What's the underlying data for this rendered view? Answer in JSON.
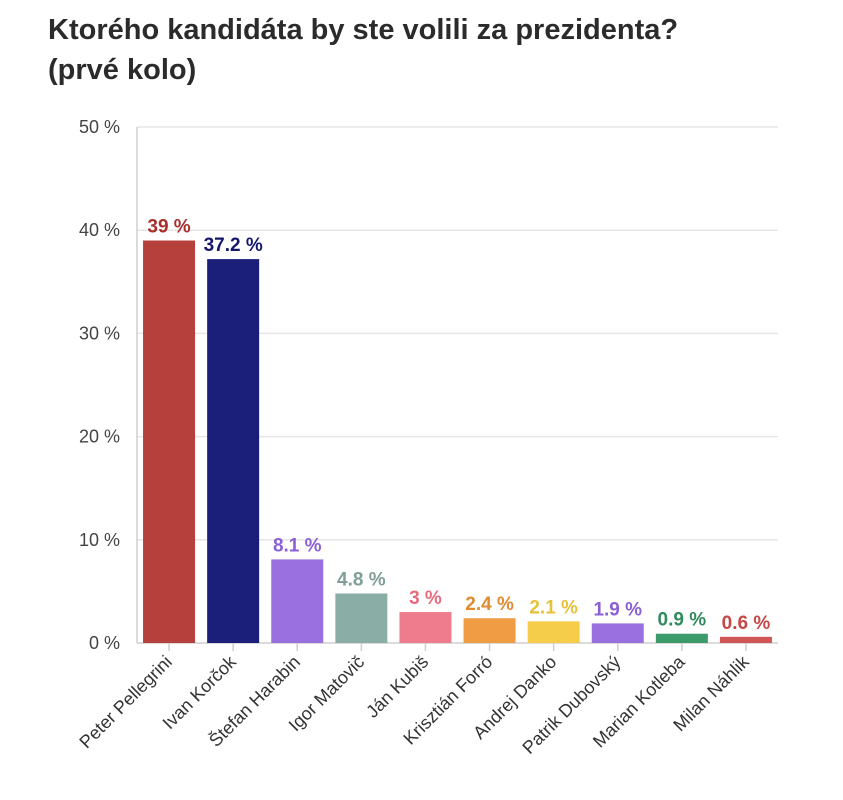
{
  "chart_data": {
    "type": "bar",
    "title": "Ktorého kandidáta by ste volili za prezidenta?",
    "subtitle": "(prvé kolo)",
    "xlabel": "",
    "ylabel": "",
    "ylim": [
      0,
      50
    ],
    "yticks": [
      0,
      10,
      20,
      30,
      40,
      50
    ],
    "ytick_labels": [
      "0 %",
      "10 %",
      "20 %",
      "30 %",
      "40 %",
      "50 %"
    ],
    "grid": true,
    "categories": [
      "Peter Pellegrini",
      "Ivan Korčok",
      "Štefan Harabin",
      "Igor Matovič",
      "Ján Kubiš",
      "Krisztián Forró",
      "Andrej Danko",
      "Patrik Dubovský",
      "Marian Kotleba",
      "Milan Náhlik"
    ],
    "values": [
      39,
      37.2,
      8.1,
      4.8,
      3,
      2.4,
      2.1,
      1.9,
      0.9,
      0.6
    ],
    "value_labels": [
      "39 %",
      "37.2 %",
      "8.1 %",
      "4.8 %",
      "3 %",
      "2.4 %",
      "2.1 %",
      "1.9 %",
      "0.9 %",
      "0.6 %"
    ],
    "colors": [
      "#b5403c",
      "#1c1f7a",
      "#9a6fe0",
      "#8aaea6",
      "#ee7c8c",
      "#f09c44",
      "#f5cd4b",
      "#9a6fe0",
      "#3c9a6c",
      "#cf5654"
    ],
    "label_colors": [
      "#a8302c",
      "#14176b",
      "#8b5fd6",
      "#7f9e97",
      "#e86a7c",
      "#e28a2e",
      "#e8c13a",
      "#8b5fd6",
      "#2f8a5c",
      "#c64744"
    ]
  }
}
